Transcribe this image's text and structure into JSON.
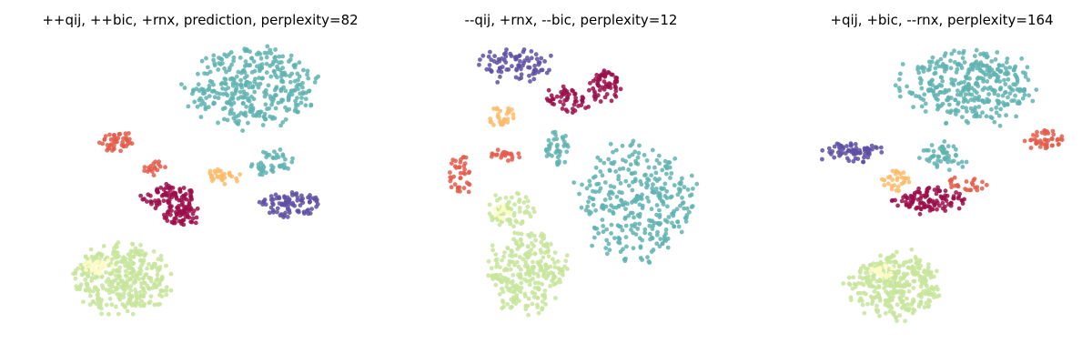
{
  "chart_data": [
    {
      "type": "scatter",
      "title": "++qij, ++bic, +rnx, prediction, perplexity=82",
      "axes": "off",
      "grid": false,
      "xlim": [
        0,
        440
      ],
      "ylim": [
        0,
        400
      ],
      "clusters": [
        {
          "color": "#5fb3b0",
          "cx": 278,
          "cy": 95,
          "rx": 68,
          "ry": 40,
          "n": 360
        },
        {
          "color": "#5fb3b0",
          "cx": 300,
          "cy": 177,
          "rx": 22,
          "ry": 14,
          "n": 45
        },
        {
          "color": "#e45c4a",
          "cx": 128,
          "cy": 156,
          "rx": 17,
          "ry": 10,
          "n": 45
        },
        {
          "color": "#e45c4a",
          "cx": 170,
          "cy": 186,
          "rx": 16,
          "ry": 8,
          "n": 18
        },
        {
          "color": "#fdbb6a",
          "cx": 244,
          "cy": 194,
          "rx": 17,
          "ry": 8,
          "n": 30
        },
        {
          "color": "#9b0e4a",
          "cx": 185,
          "cy": 216,
          "rx": 28,
          "ry": 12,
          "n": 80
        },
        {
          "color": "#9b0e4a",
          "cx": 200,
          "cy": 236,
          "rx": 20,
          "ry": 10,
          "n": 60
        },
        {
          "color": "#5e4fa2",
          "cx": 318,
          "cy": 224,
          "rx": 36,
          "ry": 13,
          "n": 85
        },
        {
          "color": "#c7e59b",
          "cx": 134,
          "cy": 307,
          "rx": 50,
          "ry": 37,
          "n": 340
        },
        {
          "color": "#fefcc4",
          "cx": 110,
          "cy": 292,
          "rx": 16,
          "ry": 9,
          "n": 25
        }
      ]
    },
    {
      "type": "scatter",
      "title": "--qij, +rnx, --bic, perplexity=12",
      "axes": "off",
      "grid": false,
      "xlim": [
        400,
        855
      ],
      "ylim": [
        0,
        400
      ],
      "clusters": [
        {
          "color": "#5e4fa2",
          "cx": 570,
          "cy": 72,
          "rx": 40,
          "ry": 17,
          "n": 85
        },
        {
          "color": "#9b0e4a",
          "cx": 665,
          "cy": 95,
          "rx": 17,
          "ry": 17,
          "n": 60
        },
        {
          "color": "#9b0e4a",
          "cx": 625,
          "cy": 110,
          "rx": 22,
          "ry": 14,
          "n": 50
        },
        {
          "color": "#fdbb6a",
          "cx": 550,
          "cy": 128,
          "rx": 15,
          "ry": 11,
          "n": 30
        },
        {
          "color": "#e45c4a",
          "cx": 506,
          "cy": 190,
          "rx": 14,
          "ry": 20,
          "n": 40
        },
        {
          "color": "#e45c4a",
          "cx": 555,
          "cy": 170,
          "rx": 15,
          "ry": 8,
          "n": 22
        },
        {
          "color": "#5fb3b0",
          "cx": 612,
          "cy": 163,
          "rx": 14,
          "ry": 20,
          "n": 40
        },
        {
          "color": "#5fb3b0",
          "cx": 698,
          "cy": 220,
          "rx": 62,
          "ry": 62,
          "n": 330
        },
        {
          "color": "#c7e59b",
          "cx": 565,
          "cy": 230,
          "rx": 25,
          "ry": 20,
          "n": 65
        },
        {
          "color": "#fefcc4",
          "cx": 552,
          "cy": 233,
          "rx": 10,
          "ry": 7,
          "n": 15
        },
        {
          "color": "#c7e59b",
          "cx": 580,
          "cy": 300,
          "rx": 40,
          "ry": 43,
          "n": 260
        }
      ]
    },
    {
      "type": "scatter",
      "title": "+qij, +bic, --rnx, perplexity=164",
      "axes": "off",
      "grid": false,
      "xlim": [
        850,
        1220
      ],
      "ylim": [
        0,
        400
      ],
      "clusters": [
        {
          "color": "#5fb3b0",
          "cx": 1065,
          "cy": 95,
          "rx": 68,
          "ry": 38,
          "n": 360
        },
        {
          "color": "#5fb3b0",
          "cx": 1040,
          "cy": 172,
          "rx": 25,
          "ry": 14,
          "n": 50
        },
        {
          "color": "#e45c4a",
          "cx": 1148,
          "cy": 153,
          "rx": 20,
          "ry": 12,
          "n": 45
        },
        {
          "color": "#5e4fa2",
          "cx": 935,
          "cy": 167,
          "rx": 32,
          "ry": 11,
          "n": 70
        },
        {
          "color": "#fdbb6a",
          "cx": 985,
          "cy": 198,
          "rx": 15,
          "ry": 12,
          "n": 30
        },
        {
          "color": "#9b0e4a",
          "cx": 1020,
          "cy": 220,
          "rx": 37,
          "ry": 15,
          "n": 110
        },
        {
          "color": "#e45c4a",
          "cx": 1060,
          "cy": 203,
          "rx": 22,
          "ry": 8,
          "n": 25
        },
        {
          "color": "#c7e59b",
          "cx": 985,
          "cy": 313,
          "rx": 47,
          "ry": 33,
          "n": 330
        },
        {
          "color": "#fefcc4",
          "cx": 970,
          "cy": 298,
          "rx": 14,
          "ry": 8,
          "n": 20
        }
      ]
    }
  ]
}
